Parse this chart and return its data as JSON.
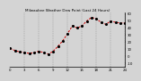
{
  "title": "Milwaukee Weather Dew Point (Last 24 Hours)",
  "bg_color": "#d4d4d4",
  "plot_bg": "#d4d4d4",
  "grid_color": "#888888",
  "line_color": "#cc0000",
  "marker_color": "#000000",
  "title_color": "#000000",
  "ylim": [
    -15,
    62
  ],
  "ytick_vals": [
    -10,
    0,
    10,
    20,
    30,
    40,
    50,
    60
  ],
  "ytick_labels": [
    "-10",
    "0",
    "10",
    "20",
    "30",
    "40",
    "50",
    "60"
  ],
  "hours": [
    0,
    1,
    2,
    3,
    4,
    5,
    6,
    7,
    8,
    9,
    10,
    11,
    12,
    13,
    14,
    15,
    16,
    17,
    18,
    19,
    20,
    21,
    22,
    23,
    24
  ],
  "dew_points": [
    11,
    8,
    6,
    5,
    4,
    5,
    7,
    5,
    3,
    7,
    14,
    22,
    32,
    43,
    40,
    43,
    50,
    55,
    53,
    48,
    45,
    50,
    48,
    47,
    47
  ],
  "vgrid_positions": [
    3,
    6,
    9,
    12,
    15,
    18,
    21,
    24
  ],
  "title_fontsize": 3.0,
  "tick_fontsize": 2.8,
  "xlabel_every": 3
}
